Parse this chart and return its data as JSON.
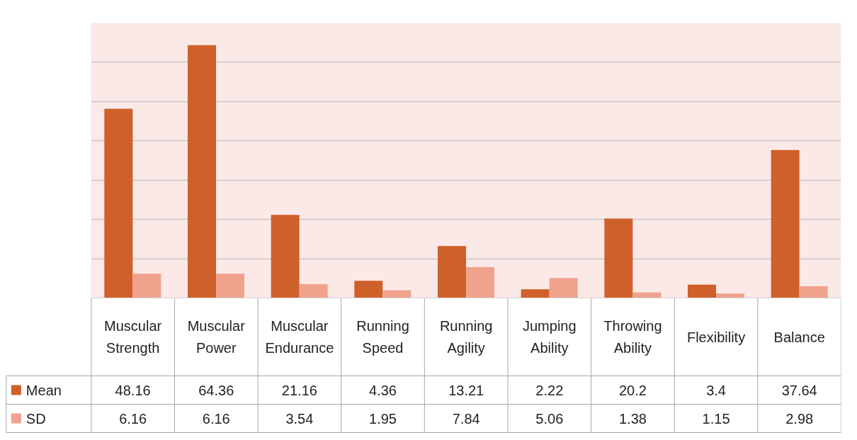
{
  "chart_data": {
    "type": "bar",
    "categories": [
      "Muscular Strength",
      "Muscular Power",
      "Muscular Endurance",
      "Running Speed",
      "Running Agility",
      "Jumping Ability",
      "Throwing Ability",
      "Flexibility",
      "Balance"
    ],
    "series": [
      {
        "name": "Mean",
        "color": "#d0602a",
        "values": [
          48.16,
          64.36,
          21.16,
          4.36,
          13.21,
          2.22,
          20.2,
          3.4,
          37.64
        ]
      },
      {
        "name": "SD",
        "color": "#f0a28c",
        "values": [
          6.16,
          6.16,
          3.54,
          1.95,
          7.84,
          5.06,
          1.38,
          1.15,
          2.98
        ]
      }
    ],
    "ylim": [
      0,
      70
    ],
    "yticks": [
      {
        "value": 0,
        "label": null
      },
      {
        "value": 10,
        "label": null
      },
      {
        "value": 20,
        "label": null
      },
      {
        "value": 30,
        "label": null
      },
      {
        "value": 40,
        "label": null
      },
      {
        "value": 50,
        "label": null
      },
      {
        "value": 60,
        "label": null
      },
      {
        "value": 70,
        "label": null
      }
    ],
    "grid": "y",
    "legend": "bottom",
    "data_labels": true
  }
}
